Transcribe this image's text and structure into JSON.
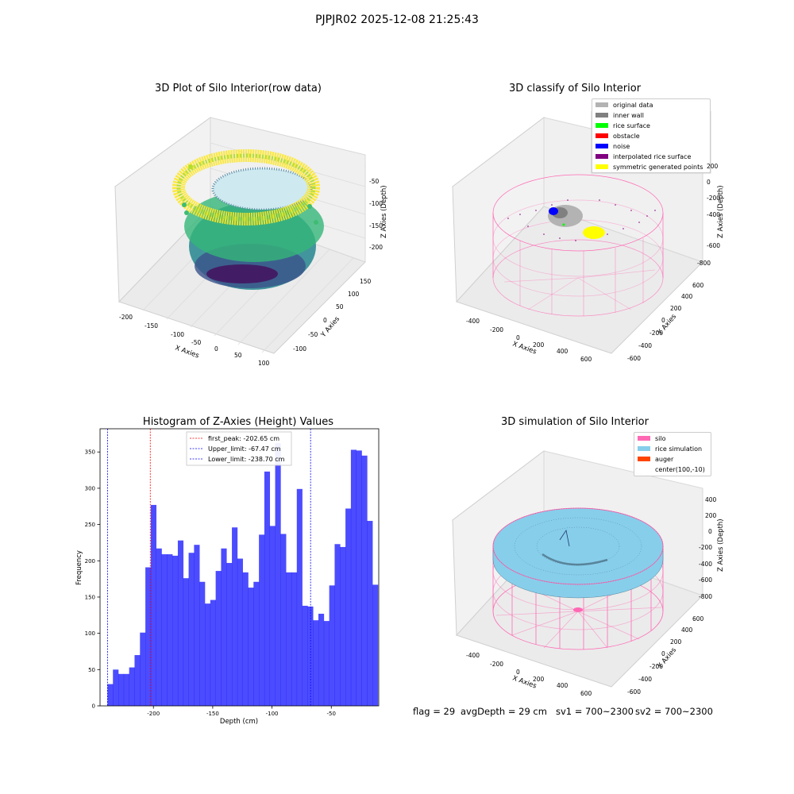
{
  "figure": {
    "suptitle": "PJPJR02 2025-12-08 21:25:43"
  },
  "panel_raw": {
    "title": "3D Plot of Silo Interior(row data)",
    "xlabel": "X Axies",
    "ylabel": "Y Axies",
    "zlabel": "Z Axies (Depth)",
    "xticks": [
      "-200",
      "-150",
      "-100",
      "-50",
      "0",
      "50",
      "100"
    ],
    "yticks": [
      "150",
      "100",
      "50",
      "0",
      "-50",
      "-100"
    ],
    "zticks": [
      "-50",
      "-100",
      "-150",
      "-200"
    ]
  },
  "panel_classify": {
    "title": "3D classify of Silo Interior",
    "xlabel": "X Axies",
    "ylabel": "Y Axies",
    "zlabel": "Z Axies (Depth)",
    "xticks": [
      "-400",
      "-200",
      "0",
      "200",
      "400",
      "600"
    ],
    "yticks": [
      "600",
      "400",
      "200",
      "0",
      "-200",
      "-400",
      "-600"
    ],
    "zticks": [
      "200",
      "0",
      "-200",
      "-400",
      "-600",
      "-800"
    ],
    "legend": [
      {
        "label": "original data",
        "color": "#b3b3b3"
      },
      {
        "label": "inner wall",
        "color": "#808080"
      },
      {
        "label": "rice surface",
        "color": "#00ff00"
      },
      {
        "label": "obstacle",
        "color": "#ff0000"
      },
      {
        "label": "noise",
        "color": "#0000ff"
      },
      {
        "label": "interpolated rice surface",
        "color": "#800080"
      },
      {
        "label": "symmetric generated points",
        "color": "#ffff00"
      }
    ]
  },
  "panel_sim": {
    "title": "3D simulation of Silo Interior",
    "xlabel": "X Axies",
    "ylabel": "Y Axies",
    "zlabel": "Z Axies (Depth)",
    "xticks": [
      "-400",
      "-200",
      "0",
      "200",
      "400",
      "600"
    ],
    "yticks": [
      "600",
      "400",
      "200",
      "0",
      "-200",
      "-400",
      "-600"
    ],
    "zticks": [
      "400",
      "200",
      "0",
      "-200",
      "-400",
      "-600",
      "-800"
    ],
    "legend": [
      {
        "label": "silo",
        "color": "#ff69b4"
      },
      {
        "label": "rice simulation",
        "color": "#87ceeb"
      },
      {
        "label": "auger",
        "color": "#ff4500"
      },
      {
        "label": "center(100,-10)",
        "color": ""
      }
    ]
  },
  "status": {
    "flag": "flag = 29",
    "avg_depth": "avgDepth = 29 cm",
    "sv1": "sv1 = 700~2300",
    "sv2": "sv2 = 700~2300"
  },
  "chart_data": {
    "type": "bar",
    "title": "Histogram of Z-Axies (Height) Values",
    "xlabel": "Depth (cm)",
    "ylabel": "Frequency",
    "xlim": [
      -245,
      -10
    ],
    "ylim": [
      0,
      382
    ],
    "xticks": [
      -200,
      -150,
      -100,
      -50
    ],
    "yticks": [
      0,
      50,
      100,
      150,
      200,
      250,
      300,
      350
    ],
    "bar_color": "#0000ff",
    "bin_start": -238.7,
    "bin_width": 4.56,
    "values": [
      30,
      50,
      44,
      44,
      53,
      70,
      101,
      191,
      277,
      217,
      209,
      209,
      207,
      228,
      176,
      211,
      222,
      171,
      141,
      146,
      186,
      217,
      197,
      246,
      203,
      184,
      163,
      171,
      236,
      323,
      248,
      362,
      237,
      184,
      184,
      299,
      138,
      137,
      118,
      127,
      117,
      166,
      223,
      219,
      272,
      353,
      352,
      345,
      255,
      167
    ],
    "vlines": [
      {
        "label": "first_peak: -202.65 cm",
        "x": -202.65,
        "color": "#ff0000"
      },
      {
        "label": "Upper_limit: -67.47 cm",
        "x": -67.47,
        "color": "#0000ff"
      },
      {
        "label": "Lower_limit: -238.70 cm",
        "x": -238.7,
        "color": "#0000ff"
      }
    ]
  }
}
